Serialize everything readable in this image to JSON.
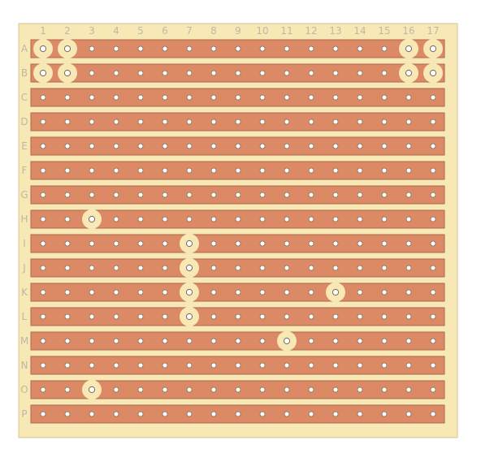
{
  "columns": [
    "1",
    "2",
    "3",
    "4",
    "5",
    "6",
    "7",
    "8",
    "9",
    "10",
    "11",
    "12",
    "13",
    "14",
    "15",
    "16",
    "17"
  ],
  "rows": [
    "A",
    "B",
    "C",
    "D",
    "E",
    "F",
    "G",
    "H",
    "I",
    "J",
    "K",
    "L",
    "M",
    "N",
    "O",
    "P"
  ],
  "cut_holes": [
    {
      "row": "A",
      "col": 1
    },
    {
      "row": "A",
      "col": 2
    },
    {
      "row": "A",
      "col": 16
    },
    {
      "row": "A",
      "col": 17
    },
    {
      "row": "B",
      "col": 1
    },
    {
      "row": "B",
      "col": 2
    },
    {
      "row": "B",
      "col": 16
    },
    {
      "row": "B",
      "col": 17
    },
    {
      "row": "H",
      "col": 3
    },
    {
      "row": "I",
      "col": 7
    },
    {
      "row": "J",
      "col": 7
    },
    {
      "row": "K",
      "col": 7
    },
    {
      "row": "K",
      "col": 13
    },
    {
      "row": "L",
      "col": 7
    },
    {
      "row": "M",
      "col": 11
    },
    {
      "row": "O",
      "col": 3
    }
  ],
  "colors": {
    "board": "#f7e8b5",
    "board_border": "#d2c595",
    "strip": "#dc8a66",
    "strip_border": "#a96a4c",
    "hole": "#ffffff",
    "hole_ring": "#7a6a55",
    "cut": "#f7e8b5",
    "label": "#bdb9a3"
  }
}
